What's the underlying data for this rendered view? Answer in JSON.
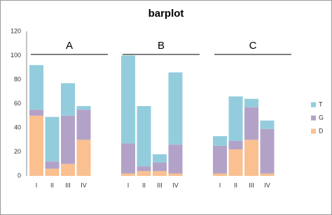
{
  "chart_data": {
    "type": "stacked-bar",
    "title": "barplot",
    "categories": [
      "I",
      "II",
      "III",
      "IV",
      "I",
      "II",
      "III",
      "IV",
      "I",
      "II",
      "III",
      "IV"
    ],
    "groups": [
      "A",
      "B",
      "C"
    ],
    "series": [
      {
        "name": "D",
        "color": "#fac090",
        "values": [
          50,
          6,
          10,
          30,
          2,
          4,
          4,
          2,
          2,
          22,
          30,
          2
        ]
      },
      {
        "name": "G",
        "color": "#b3a2c7",
        "values": [
          5,
          6,
          40,
          25,
          25,
          4,
          7,
          24,
          23,
          7,
          27,
          37
        ]
      },
      {
        "name": "T",
        "color": "#93cddd",
        "values": [
          37,
          37,
          27,
          3,
          73,
          50,
          7,
          60,
          8,
          37,
          7,
          7
        ]
      }
    ],
    "ylim": [
      0,
      120
    ],
    "yticks": [
      0,
      20,
      40,
      60,
      80,
      100,
      120
    ],
    "grid": false,
    "legend": "right"
  }
}
